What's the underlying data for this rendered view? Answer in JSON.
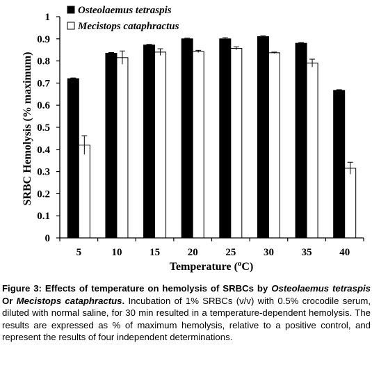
{
  "chart_data": {
    "type": "bar",
    "title": "",
    "xlabel_prefix": "Temperature (",
    "xlabel_sup": "o",
    "xlabel_suffix": "C)",
    "ylabel": "SRBC Hemolysis (% maximum)",
    "ylim": [
      0,
      1
    ],
    "yticks": [
      "0",
      "0.1",
      "0.2",
      "0.3",
      "0.4",
      "0.5",
      "0.6",
      "0.7",
      "0.8",
      "0.9",
      "1"
    ],
    "categories": [
      "5",
      "10",
      "15",
      "20",
      "25",
      "30",
      "35",
      "40"
    ],
    "legend_position": "top-left",
    "grid": false,
    "series": [
      {
        "name": "Osteolaemus tetraspis",
        "color": "#000000",
        "values": [
          0.72,
          0.835,
          0.872,
          0.9,
          0.9,
          0.91,
          0.88,
          0.667
        ],
        "errors": [
          0.003,
          0.003,
          0.003,
          0.003,
          0.005,
          0.003,
          0.003,
          0.003
        ]
      },
      {
        "name": "Mecistops cataphractus",
        "color": "#ffffff",
        "values": [
          0.42,
          0.815,
          0.84,
          0.843,
          0.857,
          0.837,
          0.79,
          0.315
        ],
        "errors": [
          0.042,
          0.03,
          0.015,
          0.005,
          0.007,
          0.003,
          0.018,
          0.027
        ]
      }
    ]
  },
  "caption": {
    "label": "Figure 3: Effects of temperature on hemolysis of SRBCs by ",
    "species1": "Osteolaemus tetraspis",
    "connector": " Or ",
    "species2": "Mecistops cataphractus",
    "period": ".",
    "body": "  Incubation of 1% SRBCs (v/v) with 0.5% crocodile serum, diluted with normal saline, for 30 min resulted in a temperature-dependent hemolysis.  The results are expressed as % of maximum hemolysis, relative to a positive control, and represent the results of four independent determinations."
  }
}
